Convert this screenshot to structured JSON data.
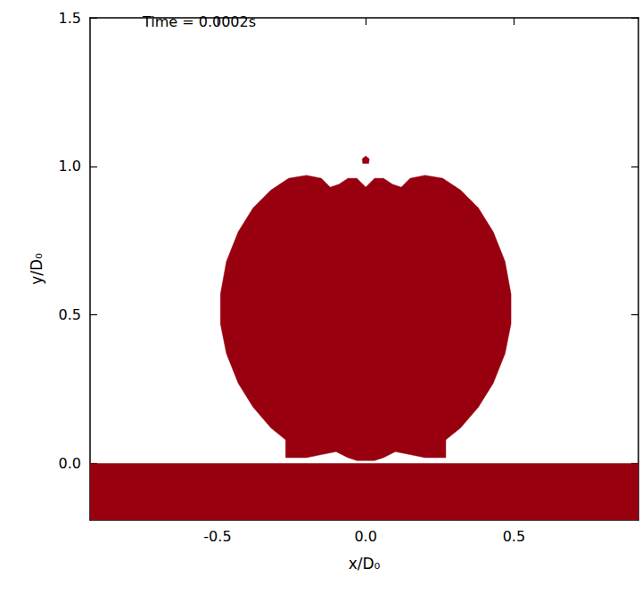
{
  "chart_data": {
    "type": "region",
    "annotations": [
      "Time = 0.0002s"
    ],
    "x_label": "x/D₀",
    "y_label": "y/D₀",
    "color": "#98000f",
    "xlim": [
      -0.93,
      0.92
    ],
    "ylim": [
      -0.19,
      1.5
    ],
    "xticks": [
      -0.5,
      {
        "value": 0,
        "label": "0.0"
      },
      0.5
    ],
    "yticks": [
      {
        "value": 0,
        "label": "0.0"
      },
      0.5,
      {
        "value": 1,
        "label": "1.0"
      },
      1.5
    ],
    "grid": false,
    "regions": [
      {
        "points": [
          [
            -0.93,
            -0.19
          ],
          [
            0.92,
            -0.19
          ],
          [
            0.92,
            0
          ],
          [
            -0.93,
            0
          ]
        ]
      },
      {
        "points": [
          [
            0,
            0.93
          ],
          [
            0.03,
            0.96
          ],
          [
            0.06,
            0.96
          ],
          [
            0.09,
            0.94
          ],
          [
            0.12,
            0.93
          ],
          [
            0.15,
            0.96
          ],
          [
            0.2,
            0.97
          ],
          [
            0.26,
            0.96
          ],
          [
            0.32,
            0.92
          ],
          [
            0.38,
            0.86
          ],
          [
            0.43,
            0.78
          ],
          [
            0.47,
            0.68
          ],
          [
            0.49,
            0.57
          ],
          [
            0.49,
            0.47
          ],
          [
            0.47,
            0.37
          ],
          [
            0.43,
            0.27
          ],
          [
            0.38,
            0.19
          ],
          [
            0.32,
            0.12
          ],
          [
            0.27,
            0.08
          ],
          [
            0.27,
            0.02
          ],
          [
            0.2,
            0.02
          ],
          [
            0.15,
            0.03
          ],
          [
            0.1,
            0.04
          ],
          [
            0.06,
            0.02
          ],
          [
            0.03,
            0.01
          ],
          [
            0,
            0.01
          ],
          [
            -0.03,
            0.01
          ],
          [
            -0.06,
            0.02
          ],
          [
            -0.1,
            0.04
          ],
          [
            -0.15,
            0.03
          ],
          [
            -0.2,
            0.02
          ],
          [
            -0.27,
            0.02
          ],
          [
            -0.27,
            0.08
          ],
          [
            -0.32,
            0.12
          ],
          [
            -0.38,
            0.19
          ],
          [
            -0.43,
            0.27
          ],
          [
            -0.47,
            0.37
          ],
          [
            -0.49,
            0.47
          ],
          [
            -0.49,
            0.57
          ],
          [
            -0.47,
            0.68
          ],
          [
            -0.43,
            0.78
          ],
          [
            -0.38,
            0.86
          ],
          [
            -0.32,
            0.92
          ],
          [
            -0.26,
            0.96
          ],
          [
            -0.2,
            0.97
          ],
          [
            -0.15,
            0.96
          ],
          [
            -0.12,
            0.93
          ],
          [
            -0.09,
            0.94
          ],
          [
            -0.06,
            0.96
          ],
          [
            -0.03,
            0.96
          ]
        ]
      },
      {
        "points": [
          [
            -0.01,
            1.01
          ],
          [
            0.01,
            1.01
          ],
          [
            0.012,
            1.025
          ],
          [
            0,
            1.035
          ],
          [
            -0.012,
            1.025
          ]
        ]
      }
    ]
  }
}
